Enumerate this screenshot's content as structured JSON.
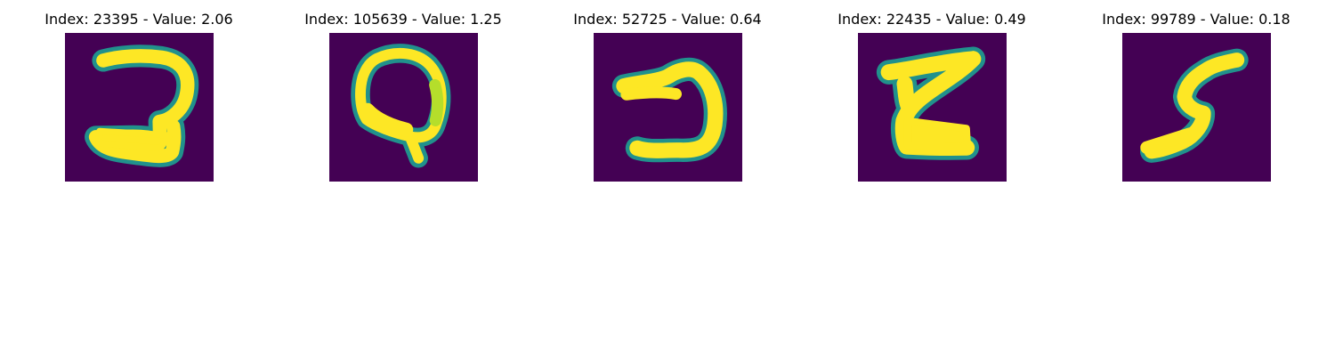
{
  "figure": {
    "background": "#ffffff",
    "colormap": "viridis",
    "colors": {
      "background_low": "#440154",
      "mid": "#21918c",
      "high": "#fde725"
    },
    "panels": [
      {
        "title": "Index: 23395 - Value: 2.06",
        "glyph": "backwards-2"
      },
      {
        "title": "Index: 105639 - Value: 1.25",
        "glyph": "Q"
      },
      {
        "title": "Index: 52725 - Value: 0.64",
        "glyph": "backwards-c"
      },
      {
        "title": "Index: 22435 - Value: 0.49",
        "glyph": "Z"
      },
      {
        "title": "Index: 99789 - Value: 0.18",
        "glyph": "S"
      }
    ]
  }
}
